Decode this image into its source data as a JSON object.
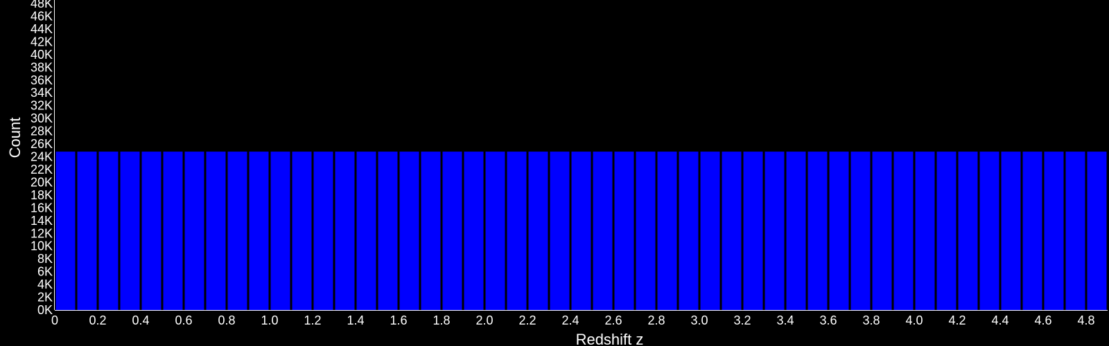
{
  "chart_data": {
    "type": "bar",
    "xlabel": "Redshift z",
    "ylabel": "Count",
    "bin_width": 0.1,
    "x_start": 0,
    "bin_count": 49,
    "values": [
      24800,
      24800,
      24800,
      24800,
      24800,
      24800,
      24800,
      24800,
      24800,
      24800,
      24800,
      24800,
      24800,
      24800,
      24800,
      24800,
      24800,
      24800,
      24800,
      24800,
      24800,
      24800,
      24800,
      24800,
      24800,
      24800,
      24800,
      24800,
      24800,
      24800,
      24800,
      24800,
      24800,
      24800,
      24800,
      24800,
      24800,
      24800,
      24800,
      24800,
      24800,
      24800,
      24800,
      24800,
      24800,
      24800,
      24800,
      24800,
      24800
    ],
    "xlim": [
      0,
      4.9
    ],
    "ylim": [
      0,
      48000
    ],
    "x_ticks": [
      0,
      0.2,
      0.4,
      0.6,
      0.8,
      1.0,
      1.2,
      1.4,
      1.6,
      1.8,
      2.0,
      2.2,
      2.4,
      2.6,
      2.8,
      3.0,
      3.2,
      3.4,
      3.6,
      3.8,
      4.0,
      4.2,
      4.4,
      4.6,
      4.8
    ],
    "x_tick_labels": [
      "0",
      "0.2",
      "0.4",
      "0.6",
      "0.8",
      "1.0",
      "1.2",
      "1.4",
      "1.6",
      "1.8",
      "2.0",
      "2.2",
      "2.4",
      "2.6",
      "2.8",
      "3.0",
      "3.2",
      "3.4",
      "3.6",
      "3.8",
      "4.0",
      "4.2",
      "4.4",
      "4.6",
      "4.8"
    ],
    "y_ticks": [
      0,
      2000,
      4000,
      6000,
      8000,
      10000,
      12000,
      14000,
      16000,
      18000,
      20000,
      22000,
      24000,
      26000,
      28000,
      30000,
      32000,
      34000,
      36000,
      38000,
      40000,
      42000,
      44000,
      46000,
      48000
    ],
    "y_tick_labels": [
      "0K",
      "2K",
      "4K",
      "6K",
      "8K",
      "10K",
      "12K",
      "14K",
      "16K",
      "18K",
      "20K",
      "22K",
      "24K",
      "26K",
      "28K",
      "30K",
      "32K",
      "34K",
      "36K",
      "38K",
      "40K",
      "42K",
      "44K",
      "46K",
      "48K"
    ],
    "grid": false,
    "legend": "none",
    "colors": {
      "background": "#000000",
      "bar_fill": "#0000ff",
      "bar_edge": "#000000",
      "axis": "#ffffff",
      "text": "#ffffff"
    }
  }
}
